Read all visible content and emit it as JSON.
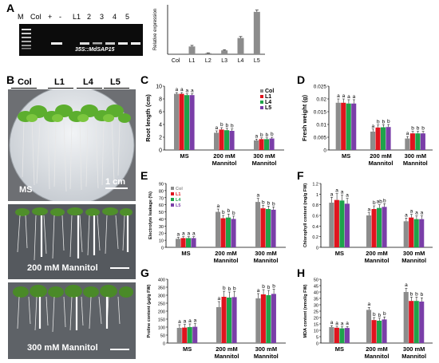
{
  "panels": {
    "a": "A",
    "b": "B",
    "c": "C",
    "d": "D",
    "e": "E",
    "f": "F",
    "g": "G",
    "h": "H"
  },
  "gel": {
    "lanes": [
      "M",
      "Col",
      "+",
      "-",
      "L1",
      "2",
      "3",
      "4",
      "5"
    ],
    "caption": "35S::MdSAP15"
  },
  "photos": {
    "lines": [
      "Col",
      "L1",
      "L4",
      "L5"
    ],
    "scale": "1 cm",
    "conditions": [
      "MS",
      "200 mM Mannitol",
      "300 mM Mannitol"
    ]
  },
  "colors": {
    "Col": "#8c8c8c",
    "L1": "#e0141e",
    "L4": "#1ea34a",
    "L5": "#7a3ea8"
  },
  "legend_labels": [
    "Col",
    "L1",
    "L4",
    "L5"
  ],
  "chart_data": [
    {
      "id": "A",
      "type": "bar",
      "categories": [
        "Col",
        "L1",
        "L2",
        "L3",
        "L4",
        "L5"
      ],
      "values": [
        0,
        1.1,
        0.15,
        0.55,
        2.3,
        6.0
      ],
      "errors": [
        0,
        0.15,
        0.05,
        0.08,
        0.2,
        0.25
      ],
      "ylabel": "Relative expression",
      "ylim": [
        0,
        7
      ]
    },
    {
      "id": "C",
      "type": "bar",
      "categories": [
        "MS",
        "200 mM\nMannitol",
        "300 mM\nMannitol"
      ],
      "series": [
        {
          "name": "Col",
          "values": [
            8.8,
            2.7,
            1.5
          ],
          "errors": [
            0.2,
            0.3,
            0.2
          ]
        },
        {
          "name": "L1",
          "values": [
            8.8,
            3.2,
            1.7
          ],
          "errors": [
            0.2,
            0.3,
            0.2
          ]
        },
        {
          "name": "L4",
          "values": [
            8.6,
            3.1,
            1.7
          ],
          "errors": [
            0.2,
            0.3,
            0.2
          ]
        },
        {
          "name": "L5",
          "values": [
            8.6,
            3.0,
            1.8
          ],
          "errors": [
            0.2,
            0.3,
            0.2
          ]
        }
      ],
      "letters": [
        [
          "a",
          "a",
          "a",
          "a"
        ],
        [
          "a",
          "b",
          "b",
          "b"
        ],
        [
          "a",
          "b",
          "b",
          "b"
        ]
      ],
      "ylabel": "Root length (cm)",
      "ylim": [
        0,
        10
      ],
      "yticks": [
        0,
        2,
        4,
        6,
        8,
        10
      ],
      "yticklabels": [
        "0",
        "2",
        "4",
        "6",
        "8",
        "10"
      ],
      "legend": "top-right"
    },
    {
      "id": "D",
      "type": "bar",
      "categories": [
        "MS",
        "200 mM\nMannitol",
        "300 mM\nMannitol"
      ],
      "series": [
        {
          "name": "Col",
          "values": [
            0.0185,
            0.0072,
            0.0045
          ],
          "errors": [
            0.0015,
            0.001,
            0.0008
          ]
        },
        {
          "name": "L1",
          "values": [
            0.0185,
            0.0088,
            0.0065
          ],
          "errors": [
            0.0015,
            0.001,
            0.0008
          ]
        },
        {
          "name": "L4",
          "values": [
            0.0182,
            0.0089,
            0.0065
          ],
          "errors": [
            0.0015,
            0.001,
            0.0008
          ]
        },
        {
          "name": "L5",
          "values": [
            0.0182,
            0.009,
            0.0065
          ],
          "errors": [
            0.0015,
            0.001,
            0.0008
          ]
        }
      ],
      "letters": [
        [
          "a",
          "a",
          "a",
          "a"
        ],
        [
          "a",
          "b",
          "b",
          "b"
        ],
        [
          "a",
          "b",
          "b",
          "b"
        ]
      ],
      "ylabel": "Fresh weight (g)",
      "ylim": [
        0,
        0.025
      ],
      "yticks": [
        0,
        0.005,
        0.01,
        0.015,
        0.02,
        0.025
      ],
      "yticklabels": [
        "0",
        "0.005",
        "0.01",
        "0.015",
        "0.02",
        "0.025"
      ]
    },
    {
      "id": "E",
      "type": "bar",
      "categories": [
        "MS",
        "200 mM\nMannitol",
        "300 mM\nMannitol"
      ],
      "series": [
        {
          "name": "Col",
          "values": [
            12,
            50,
            64
          ],
          "errors": [
            2,
            4,
            5
          ]
        },
        {
          "name": "L1",
          "values": [
            13,
            41,
            55
          ],
          "errors": [
            2,
            4,
            4
          ]
        },
        {
          "name": "L4",
          "values": [
            13,
            42,
            54
          ],
          "errors": [
            2,
            5,
            4
          ]
        },
        {
          "name": "L5",
          "values": [
            13,
            40,
            53
          ],
          "errors": [
            2,
            4,
            4
          ]
        }
      ],
      "letters": [
        [
          "a",
          "a",
          "a",
          "a"
        ],
        [
          "a",
          "b",
          "b",
          "b"
        ],
        [
          "a",
          "b",
          "b",
          "b"
        ]
      ],
      "ylabel": "Electrolyte leakage (%)",
      "ylim": [
        0,
        90
      ],
      "yticks": [
        0,
        10,
        20,
        30,
        40,
        50,
        60,
        70,
        80,
        90
      ],
      "yticklabels": [
        "0",
        "10",
        "20",
        "30",
        "40",
        "50",
        "60",
        "70",
        "80",
        "90"
      ],
      "legend": "top-left"
    },
    {
      "id": "F",
      "type": "bar",
      "categories": [
        "MS",
        "200 mM\nMannitol",
        "300 mM\nMannitol"
      ],
      "series": [
        {
          "name": "Col",
          "values": [
            0.84,
            0.6,
            0.49
          ],
          "errors": [
            0.1,
            0.05,
            0.06
          ]
        },
        {
          "name": "L1",
          "values": [
            0.89,
            0.72,
            0.56
          ],
          "errors": [
            0.12,
            0.06,
            0.06
          ]
        },
        {
          "name": "L4",
          "values": [
            0.88,
            0.74,
            0.53
          ],
          "errors": [
            0.1,
            0.06,
            0.06
          ]
        },
        {
          "name": "L5",
          "values": [
            0.82,
            0.76,
            0.53
          ],
          "errors": [
            0.1,
            0.06,
            0.06
          ]
        }
      ],
      "letters": [
        [
          "a",
          "a",
          "a",
          "a"
        ],
        [
          "a",
          "b",
          "ab",
          "b"
        ],
        [
          "a",
          "a",
          "a",
          "a"
        ]
      ],
      "ylabel": "Chlorophyll content (mg/g FW)",
      "ylim": [
        0,
        1.2
      ],
      "yticks": [
        0,
        0.2,
        0.4,
        0.6,
        0.8,
        1,
        1.2
      ],
      "yticklabels": [
        "0",
        "0.2",
        "0.4",
        "0.6",
        "0.8",
        "1",
        "1.2"
      ]
    },
    {
      "id": "G",
      "type": "bar",
      "categories": [
        "MS",
        "200 mM\nMannitol",
        "300 mM\nMannitol"
      ],
      "series": [
        {
          "name": "Col",
          "values": [
            95,
            225,
            280
          ],
          "errors": [
            20,
            35,
            30
          ]
        },
        {
          "name": "L1",
          "values": [
            97,
            290,
            305
          ],
          "errors": [
            20,
            35,
            30
          ]
        },
        {
          "name": "L4",
          "values": [
            100,
            285,
            300
          ],
          "errors": [
            20,
            35,
            30
          ]
        },
        {
          "name": "L5",
          "values": [
            102,
            288,
            308
          ],
          "errors": [
            20,
            35,
            30
          ]
        }
      ],
      "letters": [
        [
          "a",
          "a",
          "a",
          "a"
        ],
        [
          "a",
          "b",
          "b",
          "b"
        ],
        [
          "a",
          "b",
          "b",
          "b"
        ]
      ],
      "ylabel": "Proline content (μg/g FW)",
      "ylim": [
        0,
        400
      ],
      "yticks": [
        0,
        50,
        100,
        150,
        200,
        250,
        300,
        350,
        400
      ],
      "yticklabels": [
        "0",
        "50",
        "100",
        "150",
        "200",
        "250",
        "300",
        "350",
        "400"
      ]
    },
    {
      "id": "H",
      "type": "bar",
      "categories": [
        "MS",
        "200 mM\nMannitol",
        "300 mM\nMannitol"
      ],
      "series": [
        {
          "name": "Col",
          "values": [
            12.5,
            26,
            40
          ],
          "errors": [
            1.2,
            2,
            3
          ]
        },
        {
          "name": "L1",
          "values": [
            12,
            18,
            33
          ],
          "errors": [
            1.2,
            2,
            3
          ]
        },
        {
          "name": "L4",
          "values": [
            11.5,
            17.5,
            33
          ],
          "errors": [
            1.2,
            2,
            3
          ]
        },
        {
          "name": "L5",
          "values": [
            11.8,
            18.5,
            32.5
          ],
          "errors": [
            1.2,
            2,
            3
          ]
        }
      ],
      "letters": [
        [
          "a",
          "a",
          "a",
          "a"
        ],
        [
          "a",
          "b",
          "b",
          "b"
        ],
        [
          "a",
          "b",
          "b",
          "b"
        ]
      ],
      "ylabel": "MDA content (nmol/g FW)",
      "ylim": [
        0,
        50
      ],
      "yticks": [
        0,
        5,
        10,
        15,
        20,
        25,
        30,
        35,
        40,
        45,
        50
      ],
      "yticklabels": [
        "0",
        "5",
        "10",
        "15",
        "20",
        "25",
        "30",
        "35",
        "40",
        "45",
        "50"
      ]
    }
  ]
}
